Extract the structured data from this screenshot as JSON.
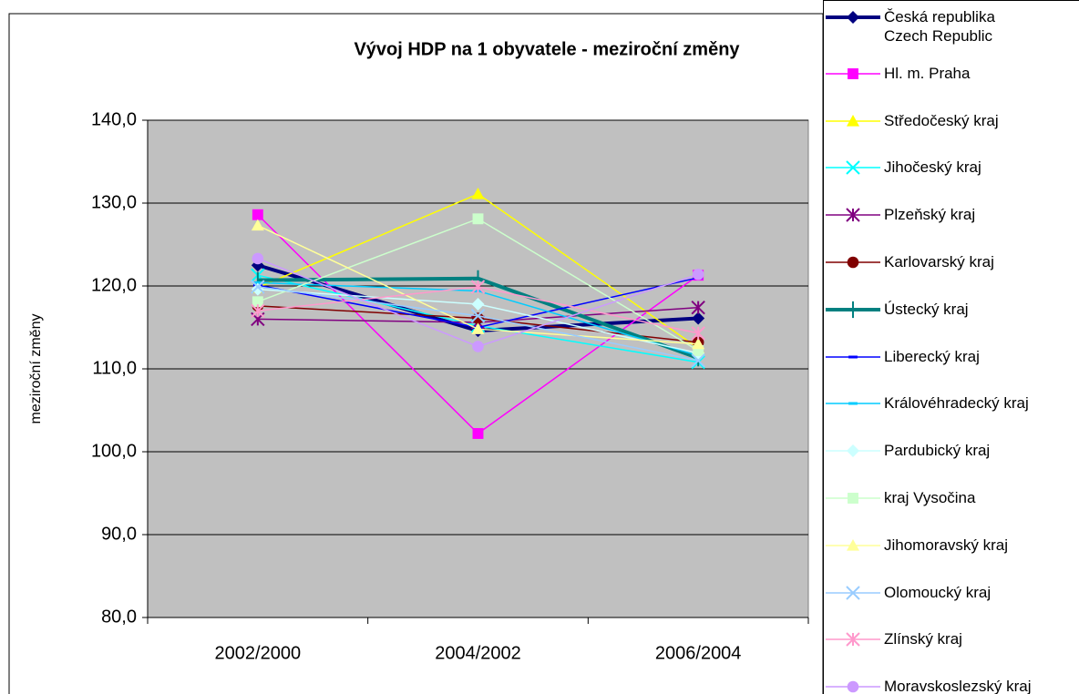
{
  "chart_data": {
    "type": "line",
    "title": "Vývoj HDP na 1 obyvatele - meziroční změny",
    "y_label": "meziroční změny",
    "categories": [
      "2002/2000",
      "2004/2002",
      "2006/2004"
    ],
    "ylim": [
      80,
      140
    ],
    "yticks": [
      {
        "value": 80,
        "label": "80,0"
      },
      {
        "value": 90,
        "label": "90,0"
      },
      {
        "value": 100,
        "label": "100,0"
      },
      {
        "value": 110,
        "label": "110,0"
      },
      {
        "value": 120,
        "label": "120,0"
      },
      {
        "value": 130,
        "label": "130,0"
      },
      {
        "value": 140,
        "label": "140,0"
      }
    ],
    "grid": true,
    "legend": "right",
    "series": [
      {
        "name": "Česká republika\nCzech Republic",
        "color": "#000080",
        "marker": "diamond",
        "width": 4,
        "values": [
          122.5,
          114.6,
          116.1
        ]
      },
      {
        "name": "Hl. m. Praha",
        "color": "#FF00FF",
        "marker": "square",
        "width": 1.5,
        "values": [
          128.6,
          102.2,
          121.3
        ]
      },
      {
        "name": "Středočeský kraj",
        "color": "#FFFF00",
        "marker": "triangle",
        "width": 1.5,
        "values": [
          119.8,
          131.1,
          112.5
        ]
      },
      {
        "name": "Jihočeský kraj",
        "color": "#00FFFF",
        "marker": "x",
        "width": 1.5,
        "values": [
          121.3,
          115.2,
          110.8
        ]
      },
      {
        "name": "Plzeňský kraj",
        "color": "#800080",
        "marker": "star",
        "width": 1.5,
        "values": [
          116.0,
          115.6,
          117.4
        ]
      },
      {
        "name": "Karlovarský kraj",
        "color": "#800000",
        "marker": "circle",
        "width": 1.5,
        "values": [
          117.6,
          116.1,
          113.2
        ]
      },
      {
        "name": "Ústecký kraj",
        "color": "#008080",
        "marker": "plus",
        "width": 4,
        "values": [
          120.7,
          120.9,
          111.3
        ]
      },
      {
        "name": "Liberecký kraj",
        "color": "#0000FF",
        "marker": "dash",
        "width": 1.5,
        "values": [
          120.1,
          115.0,
          121.0
        ]
      },
      {
        "name": "Královéhradecký kraj",
        "color": "#00CCFF",
        "marker": "dash",
        "width": 1.5,
        "values": [
          120.4,
          119.4,
          111.6
        ]
      },
      {
        "name": "Pardubický kraj",
        "color": "#CCFFFF",
        "marker": "diamond",
        "width": 1.5,
        "values": [
          119.6,
          117.8,
          111.9
        ]
      },
      {
        "name": " kraj Vysočina",
        "color": "#CCFFCC",
        "marker": "square",
        "width": 1.5,
        "values": [
          118.1,
          128.1,
          112.2
        ]
      },
      {
        "name": "Jihomoravský kraj",
        "color": "#FFFF99",
        "marker": "triangle",
        "width": 1.5,
        "values": [
          127.3,
          114.8,
          113.0
        ]
      },
      {
        "name": "Olomoucký kraj",
        "color": "#99CCFF",
        "marker": "x",
        "width": 1.5,
        "values": [
          119.9,
          116.4,
          111.0
        ]
      },
      {
        "name": "Zlínský kraj",
        "color": "#FF99CC",
        "marker": "star",
        "width": 1.5,
        "values": [
          117.0,
          119.9,
          114.3
        ]
      },
      {
        "name": "Moravskoslezský kraj",
        "color": "#CC99FF",
        "marker": "circle",
        "width": 1.5,
        "values": [
          123.3,
          112.7,
          121.4
        ]
      }
    ]
  }
}
